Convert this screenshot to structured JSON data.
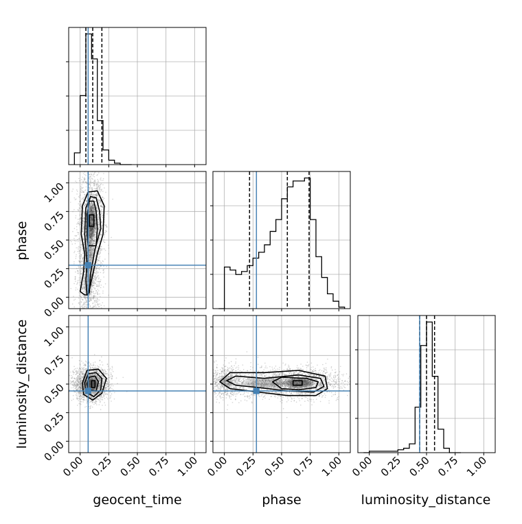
{
  "chart_data": {
    "type": "corner",
    "parameters": [
      "geocent_time",
      "phase",
      "luminosity_distance"
    ],
    "axis_range": [
      -0.1,
      1.1
    ],
    "ticks": [
      0.0,
      0.25,
      0.5,
      0.75,
      1.0
    ],
    "tick_labels": [
      "0.00",
      "0.25",
      "0.50",
      "0.75",
      "1.00"
    ],
    "grid": true,
    "colors": {
      "truth": "#4682b4",
      "hist": "#000000",
      "quantile": "#000000",
      "grid": "#b0b0b0",
      "points": "#808080"
    },
    "truths": {
      "geocent_time": 0.07,
      "phase": 0.28,
      "luminosity_distance": 0.44
    },
    "quantiles": {
      "geocent_time": [
        0.05,
        0.11,
        0.19
      ],
      "phase": [
        0.22,
        0.55,
        0.74
      ],
      "luminosity_distance": [
        0.44,
        0.5,
        0.57
      ]
    },
    "histograms": {
      "geocent_time": {
        "bin_edges": [
          -0.05,
          0.0,
          0.05,
          0.1,
          0.15,
          0.2,
          0.25,
          0.3,
          0.35,
          0.4,
          0.45
        ],
        "counts": [
          0.08,
          0.47,
          0.89,
          0.72,
          0.3,
          0.1,
          0.03,
          0.01,
          0.0,
          0.0
        ]
      },
      "phase": {
        "bin_edges": [
          -0.05,
          0.0,
          0.05,
          0.1,
          0.15,
          0.2,
          0.25,
          0.3,
          0.35,
          0.4,
          0.45,
          0.5,
          0.55,
          0.6,
          0.65,
          0.7,
          0.75,
          0.8,
          0.85,
          0.9,
          0.95,
          1.0,
          1.05
        ],
        "counts": [
          0.0,
          0.28,
          0.26,
          0.23,
          0.25,
          0.29,
          0.34,
          0.38,
          0.43,
          0.52,
          0.6,
          0.74,
          0.82,
          0.86,
          0.86,
          0.88,
          0.6,
          0.35,
          0.21,
          0.1,
          0.05,
          0.01
        ]
      },
      "luminosity_distance": {
        "bin_edges": [
          -0.05,
          0.0,
          0.05,
          0.1,
          0.15,
          0.2,
          0.25,
          0.3,
          0.35,
          0.4,
          0.45,
          0.5,
          0.55,
          0.6,
          0.65,
          0.7,
          0.75,
          0.8
        ],
        "counts": [
          0.0,
          0.01,
          0.01,
          0.01,
          0.01,
          0.01,
          0.02,
          0.03,
          0.06,
          0.31,
          0.73,
          0.89,
          0.52,
          0.16,
          0.03,
          0.0,
          0.0
        ]
      }
    },
    "contours": {
      "phase_vs_geocent_time": [
        [
          [
            0.08,
            0.62
          ],
          [
            0.12,
            0.62
          ],
          [
            0.12,
            0.72
          ],
          [
            0.08,
            0.72
          ]
        ],
        [
          [
            0.07,
            0.45
          ],
          [
            0.14,
            0.45
          ],
          [
            0.15,
            0.6
          ],
          [
            0.14,
            0.75
          ],
          [
            0.12,
            0.84
          ],
          [
            0.08,
            0.84
          ],
          [
            0.06,
            0.72
          ],
          [
            0.06,
            0.55
          ]
        ],
        [
          [
            0.06,
            0.02
          ],
          [
            0.05,
            0.15
          ],
          [
            0.06,
            0.3
          ],
          [
            0.04,
            0.55
          ],
          [
            0.05,
            0.78
          ],
          [
            0.09,
            0.88
          ],
          [
            0.14,
            0.87
          ],
          [
            0.17,
            0.75
          ],
          [
            0.18,
            0.6
          ],
          [
            0.13,
            0.42
          ],
          [
            0.09,
            0.2
          ],
          [
            0.08,
            0.04
          ]
        ],
        [
          [
            0.04,
            0.02
          ],
          [
            0.0,
            0.05
          ],
          [
            0.03,
            0.22
          ],
          [
            0.04,
            0.38
          ],
          [
            0.01,
            0.55
          ],
          [
            0.02,
            0.8
          ],
          [
            0.07,
            0.92
          ],
          [
            0.15,
            0.93
          ],
          [
            0.21,
            0.8
          ],
          [
            0.2,
            0.55
          ],
          [
            0.15,
            0.38
          ],
          [
            0.1,
            0.15
          ],
          [
            0.07,
            0.02
          ]
        ]
      ],
      "luminosity_distance_vs_geocent_time": [
        [
          [
            0.1,
            0.47
          ],
          [
            0.13,
            0.47
          ],
          [
            0.13,
            0.53
          ],
          [
            0.1,
            0.53
          ]
        ],
        [
          [
            0.07,
            0.45
          ],
          [
            0.14,
            0.44
          ],
          [
            0.16,
            0.52
          ],
          [
            0.13,
            0.57
          ],
          [
            0.08,
            0.56
          ],
          [
            0.06,
            0.5
          ]
        ],
        [
          [
            0.05,
            0.43
          ],
          [
            0.12,
            0.39
          ],
          [
            0.18,
            0.45
          ],
          [
            0.19,
            0.55
          ],
          [
            0.14,
            0.6
          ],
          [
            0.07,
            0.59
          ],
          [
            0.04,
            0.51
          ]
        ],
        [
          [
            0.03,
            0.41
          ],
          [
            0.11,
            0.36
          ],
          [
            0.19,
            0.42
          ],
          [
            0.23,
            0.55
          ],
          [
            0.16,
            0.63
          ],
          [
            0.06,
            0.62
          ],
          [
            0.02,
            0.51
          ]
        ]
      ],
      "luminosity_distance_vs_phase": [
        [
          [
            0.6,
            0.49
          ],
          [
            0.68,
            0.49
          ],
          [
            0.68,
            0.53
          ],
          [
            0.6,
            0.53
          ]
        ],
        [
          [
            0.42,
            0.52
          ],
          [
            0.5,
            0.46
          ],
          [
            0.65,
            0.45
          ],
          [
            0.8,
            0.47
          ],
          [
            0.82,
            0.52
          ],
          [
            0.72,
            0.55
          ],
          [
            0.5,
            0.56
          ]
        ],
        [
          [
            0.02,
            0.53
          ],
          [
            0.1,
            0.49
          ],
          [
            0.3,
            0.47
          ],
          [
            0.55,
            0.44
          ],
          [
            0.78,
            0.43
          ],
          [
            0.87,
            0.48
          ],
          [
            0.84,
            0.55
          ],
          [
            0.65,
            0.58
          ],
          [
            0.35,
            0.55
          ],
          [
            0.1,
            0.57
          ]
        ],
        [
          [
            -0.04,
            0.52
          ],
          [
            0.05,
            0.46
          ],
          [
            0.3,
            0.43
          ],
          [
            0.55,
            0.4
          ],
          [
            0.8,
            0.4
          ],
          [
            0.9,
            0.46
          ],
          [
            0.88,
            0.57
          ],
          [
            0.65,
            0.62
          ],
          [
            0.35,
            0.6
          ],
          [
            0.05,
            0.6
          ]
        ]
      ]
    },
    "densities": {
      "phase_vs_geocent_time": [
        {
          "x": 0.1,
          "y": 0.67,
          "sx": 0.03,
          "sy": 0.12,
          "w": 1.0
        },
        {
          "x": 0.08,
          "y": 0.4,
          "sx": 0.03,
          "sy": 0.2,
          "w": 0.5
        },
        {
          "x": 0.07,
          "y": 0.1,
          "sx": 0.03,
          "sy": 0.08,
          "w": 0.3
        }
      ],
      "luminosity_distance_vs_geocent_time": [
        {
          "x": 0.1,
          "y": 0.5,
          "sx": 0.04,
          "sy": 0.04,
          "w": 1.0
        }
      ],
      "luminosity_distance_vs_phase": [
        {
          "x": 0.65,
          "y": 0.51,
          "sx": 0.1,
          "sy": 0.035,
          "w": 1.0
        },
        {
          "x": 0.35,
          "y": 0.51,
          "sx": 0.15,
          "sy": 0.04,
          "w": 0.45
        },
        {
          "x": 0.02,
          "y": 0.52,
          "sx": 0.04,
          "sy": 0.04,
          "w": 0.4
        }
      ]
    }
  }
}
